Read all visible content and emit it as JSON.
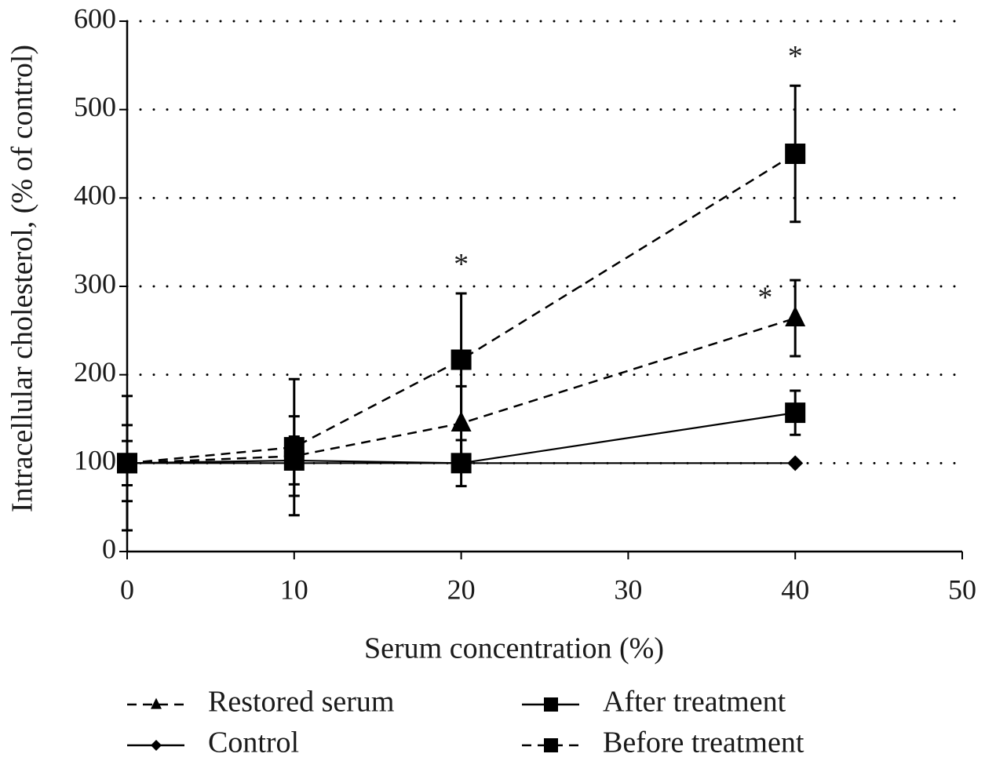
{
  "chart_data": {
    "type": "line",
    "x_label": "Serum concentration (%)",
    "y_label": "Intracellular cholesterol, (% of control)",
    "xlim": [
      0,
      50
    ],
    "xticks": [
      0,
      10,
      20,
      30,
      40,
      50
    ],
    "ylim": [
      0,
      600
    ],
    "yticks": [
      0,
      100,
      200,
      300,
      400,
      500,
      600
    ],
    "grid": true,
    "series": [
      {
        "name": "Restored serum",
        "color": "#000000",
        "marker": "triangle",
        "dashed": true,
        "x": [
          0,
          10,
          20,
          40
        ],
        "values": [
          100,
          108,
          145,
          264
        ],
        "errors": [
          43,
          45,
          42,
          43
        ]
      },
      {
        "name": "After treatment",
        "color": "#000000",
        "marker": "square",
        "dashed": false,
        "x": [
          0,
          10,
          20,
          40
        ],
        "values": [
          100,
          103,
          100,
          157
        ],
        "errors": [
          25,
          27,
          26,
          25
        ]
      },
      {
        "name": "Control",
        "color": "#000000",
        "marker": "diamond",
        "dashed": false,
        "x": [
          0,
          10,
          20,
          40
        ],
        "values": [
          100,
          100,
          100,
          100
        ]
      },
      {
        "name": "Before treatment",
        "color": "#000000",
        "marker": "square",
        "dashed": true,
        "x": [
          0,
          10,
          20,
          40
        ],
        "values": [
          100,
          118,
          217,
          450
        ],
        "errors": [
          76,
          77,
          75,
          77
        ]
      }
    ],
    "annotations": [
      {
        "text": "*",
        "x": 20,
        "y": 322
      },
      {
        "text": "*",
        "x": 40,
        "y": 557
      },
      {
        "text": "*",
        "x": 38.2,
        "y": 284
      }
    ]
  }
}
